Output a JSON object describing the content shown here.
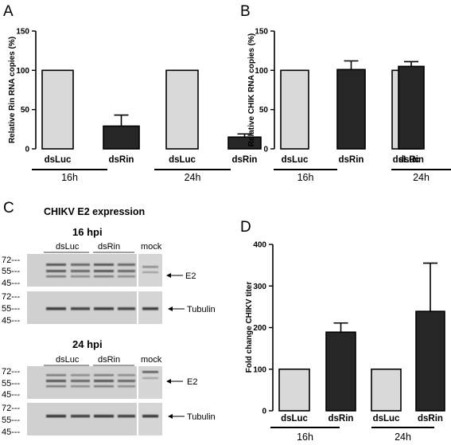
{
  "panels": {
    "a": "A",
    "b": "B",
    "c": "C",
    "d": "D"
  },
  "colors": {
    "dsLuc": "#d9d9d9",
    "dsRin": "#262626",
    "axis": "#000000"
  },
  "chart_data": [
    {
      "id": "A",
      "type": "bar",
      "ylabel": "Relative Rin RNA copies (%)",
      "ylim": [
        0,
        150
      ],
      "yticks": [
        0,
        50,
        100,
        150
      ],
      "categories": [
        "dsLuc",
        "dsRin",
        "dsLuc",
        "dsRin"
      ],
      "groups": [
        "16h",
        "24h"
      ],
      "values": [
        100,
        29,
        100,
        15
      ],
      "errors": [
        0,
        14,
        0,
        4
      ],
      "bar_colors": [
        "#d9d9d9",
        "#262626",
        "#d9d9d9",
        "#262626"
      ]
    },
    {
      "id": "B",
      "type": "bar",
      "ylabel": "Relative CHIK RNA copies (%)",
      "ylim": [
        0,
        150
      ],
      "yticks": [
        0,
        50,
        100,
        150
      ],
      "categories": [
        "dsLuc",
        "dsRin",
        "dsLuc",
        "dsRin"
      ],
      "groups": [
        "16h",
        "24h"
      ],
      "values": [
        100,
        101,
        100,
        105
      ],
      "errors": [
        0,
        11,
        0,
        6
      ],
      "bar_colors": [
        "#d9d9d9",
        "#262626",
        "#d9d9d9",
        "#262626"
      ]
    },
    {
      "id": "D",
      "type": "bar",
      "ylabel": "Fold change CHIKV titer",
      "ylim": [
        0,
        400
      ],
      "yticks": [
        0,
        100,
        200,
        300,
        400
      ],
      "categories": [
        "dsLuc",
        "dsRin",
        "dsLuc",
        "dsRin"
      ],
      "groups": [
        "16h",
        "24h"
      ],
      "values": [
        100,
        189,
        100,
        239
      ],
      "errors": [
        0,
        22,
        0,
        116
      ],
      "bar_colors": [
        "#d9d9d9",
        "#262626",
        "#d9d9d9",
        "#262626"
      ]
    }
  ],
  "blot": {
    "title": "CHIKV E2 expression",
    "sections": [
      {
        "timepoint": "16 hpi",
        "lanes": [
          "dsLuc",
          "dsRin",
          "mock"
        ],
        "e2_markers": [
          "72---",
          "55---",
          "45---"
        ],
        "tub_markers": [
          "72---",
          "55---",
          "45---"
        ],
        "e2_label": "E2",
        "tub_label": "Tubulin"
      },
      {
        "timepoint": "24 hpi",
        "lanes": [
          "dsLuc",
          "dsRin",
          "mock"
        ],
        "e2_markers": [
          "72---",
          "55---",
          "45---"
        ],
        "tub_markers": [
          "72---",
          "55---",
          "45---"
        ],
        "e2_label": "E2",
        "tub_label": "Tubulin"
      }
    ]
  }
}
